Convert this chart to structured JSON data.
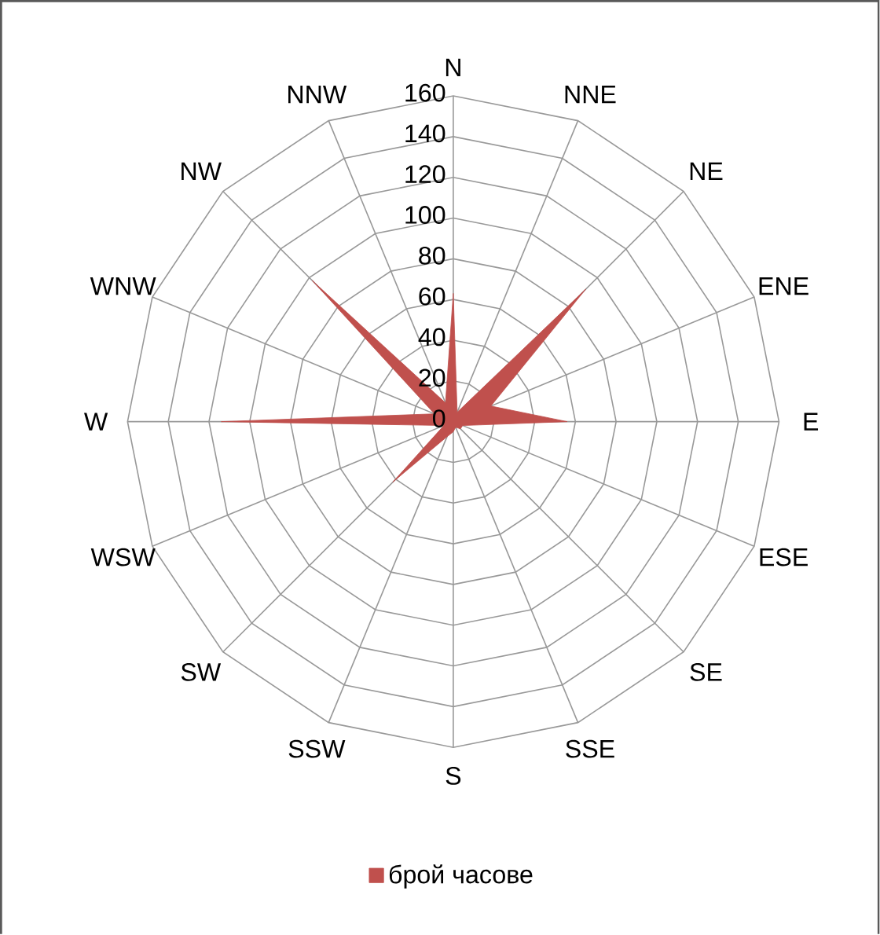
{
  "chart_data": {
    "type": "radar",
    "categories": [
      "N",
      "NNE",
      "NE",
      "ENE",
      "E",
      "ESE",
      "SE",
      "SSE",
      "S",
      "SSW",
      "SW",
      "WSW",
      "W",
      "WNW",
      "NW",
      "NNW"
    ],
    "series": [
      {
        "name": "брой часове",
        "color": "#c0504d",
        "values": [
          63,
          5,
          92,
          20,
          56,
          5,
          5,
          3,
          5,
          8,
          42,
          5,
          114,
          10,
          98,
          10
        ]
      }
    ],
    "ylim": [
      0,
      160
    ],
    "yticks": [
      0,
      20,
      40,
      60,
      80,
      100,
      120,
      140,
      160
    ],
    "grid": true,
    "legend": "bottom"
  }
}
